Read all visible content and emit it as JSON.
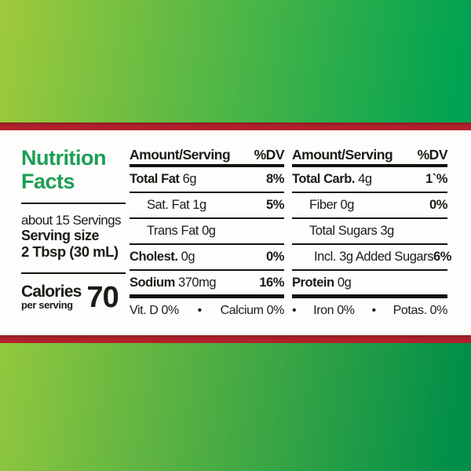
{
  "colors": {
    "accent_green": "#1b9e55",
    "text_black": "#1d1b18",
    "stripe_red": "#b2212b",
    "stripe_red_dark": "#8f1d24",
    "grad_top_left": "#a0ca3b",
    "grad_top_right": "#00a351",
    "grad_bottom_left": "#92c83e",
    "grad_bottom_right": "#008f49",
    "panel_white": "#fdfdfb"
  },
  "bullet": "•",
  "panel": {
    "title_line1": "Nutrition",
    "title_line2": "Facts",
    "servings": "about 15 Servings",
    "serving_size_label": "Serving size",
    "serving_size_value": "2 Tbsp (30 mL)",
    "calories_label": "Calories",
    "calories_sublabel": "per serving",
    "calories_value": "70"
  },
  "columns": [
    {
      "header": {
        "amount": "Amount/Serving",
        "dv": "%DV"
      },
      "rows": [
        {
          "name": "Total Fat",
          "value": "6g",
          "dv": "8%",
          "bold": true,
          "indent": 0
        },
        {
          "name": "Sat. Fat",
          "value": "1g",
          "dv": "5%",
          "bold": false,
          "indent": 1
        },
        {
          "name": "Trans Fat",
          "value": "0g",
          "dv": "",
          "bold": false,
          "indent": 1
        },
        {
          "name": "Cholest.",
          "value": "0g",
          "dv": "0%",
          "bold": true,
          "indent": 0
        },
        {
          "name": "Sodium",
          "value": "370mg",
          "dv": "16%",
          "bold": true,
          "indent": 0
        }
      ],
      "footer": {
        "leading_bullet": false,
        "items": [
          "Vit. D 0%",
          "Calcium 0%"
        ]
      }
    },
    {
      "header": {
        "amount": "Amount/Serving",
        "dv": "%DV"
      },
      "rows": [
        {
          "name": "Total Carb.",
          "value": "4g",
          "dv": "1`%",
          "bold": true,
          "indent": 0
        },
        {
          "name": "Fiber",
          "value": "0g",
          "dv": "0%",
          "bold": false,
          "indent": 1
        },
        {
          "name": "Total Sugars",
          "value": "3g",
          "dv": "",
          "bold": false,
          "indent": 1
        },
        {
          "name": "Incl. 3g Added Sugars",
          "value": "",
          "dv": "6%",
          "bold": false,
          "indent": 2
        },
        {
          "name": "Protein",
          "value": "0g",
          "dv": "",
          "bold": true,
          "indent": 0
        }
      ],
      "footer": {
        "leading_bullet": true,
        "items": [
          "Iron 0%",
          "Potas. 0%"
        ]
      }
    }
  ]
}
